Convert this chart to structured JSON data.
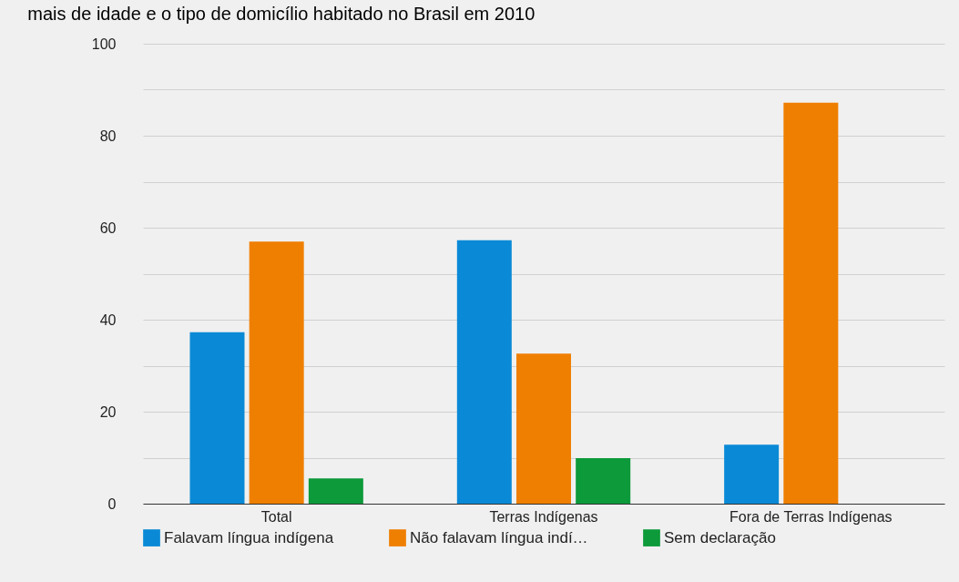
{
  "chart_data": {
    "type": "bar",
    "title": "mais de idade e o tipo de domicílio habitado no Brasil em 2010",
    "categories": [
      "Total",
      "Terras Indígenas",
      "Fora de Terras Indígenas"
    ],
    "series": [
      {
        "name": "Falavam língua indígena",
        "color": "#0a8ad6",
        "values": [
          37.3,
          57.3,
          12.8
        ]
      },
      {
        "name": "Não falavam língua indí…",
        "color": "#ef7f00",
        "values": [
          57.0,
          32.6,
          87.2
        ]
      },
      {
        "name": "Sem declaração",
        "color": "#0d9a3a",
        "values": [
          5.5,
          9.9,
          null
        ]
      }
    ],
    "ylim": [
      0,
      100
    ],
    "yticks": [
      0,
      {
        "value": 10,
        "label": null
      },
      20,
      {
        "value": 30,
        "label": null
      },
      40,
      {
        "value": 50,
        "label": null
      },
      60,
      {
        "value": 70,
        "label": null
      },
      80,
      {
        "value": 90,
        "label": null
      },
      100
    ],
    "grid": true,
    "legend": "bottom"
  }
}
